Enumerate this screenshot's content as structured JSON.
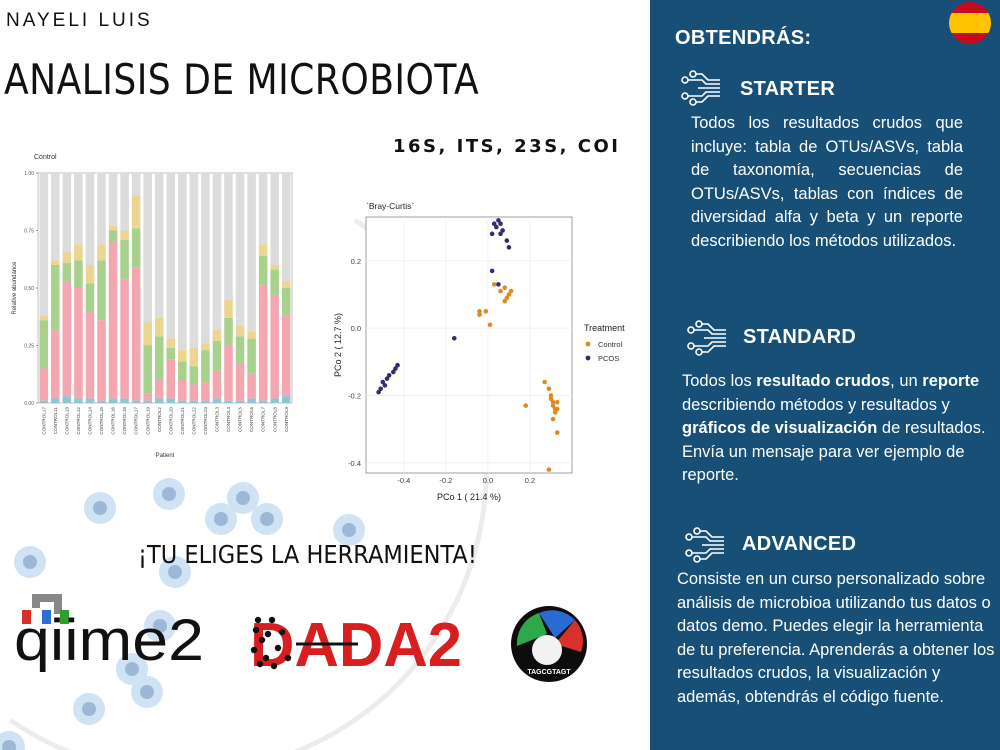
{
  "header": {
    "author": "NAYELI LUIS",
    "title": "ANALISIS DE MICROBIOTA",
    "markers": "16S, ITS, 23S, COI"
  },
  "slogan": "¡TU ELIGES LA HERRAMIENTA!",
  "tools": {
    "qiime_logo_text": "qiime2",
    "dada_logo_text": "DADA2",
    "third_logo_text": "TAGCGTAGT"
  },
  "side_panel": {
    "heading": "OBTENDRÁS:",
    "flag_icon": "spain-flag-icon",
    "accent_color": "#174f77",
    "plans": [
      {
        "name": "STARTER",
        "icon": "circuit-icon",
        "description": "Todos los resultados crudos que incluye: tabla de OTUs/ASVs, tabla de taxonomía, secuencias de OTUs/ASVs, tablas con índices de diversidad alfa y beta y un reporte describiendo los métodos utilizados."
      },
      {
        "name": "STANDARD",
        "icon": "circuit-icon",
        "desc_parts": [
          "Todos los ",
          "resultado crudos",
          ", un ",
          "reporte",
          " describiendo métodos y resultados y ",
          "gráficos de visualización",
          " de resultados. Envía un mensaje para ver ejemplo de reporte."
        ]
      },
      {
        "name": "ADVANCED",
        "icon": "circuit-icon",
        "description": "Consiste en un curso personalizado sobre análisis de microbioa utilizando tus datos o datos demo. Puedes elegir la herramienta de tu preferencia. Aprenderás a obtener los resultados crudos, la visualización y además, obtendrás el código fuente."
      }
    ]
  },
  "chart_data": [
    {
      "type": "bar",
      "subtype": "stacked",
      "title": "Control",
      "xlabel": "Patient",
      "ylabel": "Relative abundance",
      "ylim": [
        0,
        1
      ],
      "yticks": [
        "0.00",
        "0.25",
        "0.50",
        "0.75",
        "1.00"
      ],
      "categories": [
        "CONTROL17",
        "CONTROL11",
        "CONTROL13",
        "CONTROL12",
        "CONTROL14",
        "CONTROL15",
        "CONTROL16",
        "CONTROL18",
        "CONTROL17",
        "CONTROL19",
        "CONTROL2",
        "CONTROL20",
        "CONTROL21",
        "CONTROL22",
        "CONTROL23",
        "CONTROL3",
        "CONTROL4",
        "CONTROL5",
        "CONTROL6",
        "CONTROL7",
        "CONTROL8",
        "CONTROL9"
      ],
      "series": [
        {
          "color": "#8cc8d2",
          "values": [
            0.01,
            0.02,
            0.03,
            0.02,
            0.02,
            0.01,
            0.02,
            0.02,
            0.01,
            0.01,
            0.02,
            0.02,
            0.01,
            0.01,
            0.01,
            0.02,
            0.01,
            0.01,
            0.02,
            0.01,
            0.02,
            0.03
          ]
        },
        {
          "color": "#f4a7b0",
          "values": [
            0.14,
            0.3,
            0.5,
            0.48,
            0.38,
            0.35,
            0.68,
            0.52,
            0.58,
            0.03,
            0.08,
            0.17,
            0.09,
            0.07,
            0.08,
            0.12,
            0.24,
            0.16,
            0.11,
            0.5,
            0.45,
            0.35
          ]
        },
        {
          "color": "#a9d18e",
          "values": [
            0.21,
            0.28,
            0.08,
            0.12,
            0.12,
            0.26,
            0.05,
            0.17,
            0.17,
            0.21,
            0.19,
            0.05,
            0.08,
            0.08,
            0.14,
            0.13,
            0.12,
            0.12,
            0.15,
            0.13,
            0.11,
            0.12
          ]
        },
        {
          "color": "#ecd491",
          "values": [
            0.02,
            0.02,
            0.05,
            0.07,
            0.08,
            0.07,
            0.02,
            0.04,
            0.14,
            0.1,
            0.08,
            0.04,
            0.05,
            0.08,
            0.03,
            0.05,
            0.08,
            0.05,
            0.03,
            0.05,
            0.02,
            0.03
          ]
        },
        {
          "color": "#dcdcdc",
          "values": [
            0.62,
            0.38,
            0.34,
            0.31,
            0.4,
            0.31,
            0.23,
            0.25,
            0.1,
            0.65,
            0.63,
            0.72,
            0.77,
            0.76,
            0.74,
            0.68,
            0.55,
            0.66,
            0.69,
            0.31,
            0.4,
            0.47
          ]
        }
      ]
    },
    {
      "type": "scatter",
      "title": "`Bray-Curtis`",
      "xlabel": "PCo 1 ( 21.4 %)",
      "ylabel": "PCo 2 ( 12.7 %)",
      "xlim": [
        -0.58,
        0.4
      ],
      "ylim": [
        -0.43,
        0.33
      ],
      "xticks": [
        -0.4,
        -0.2,
        0.0,
        0.2
      ],
      "yticks": [
        -0.4,
        -0.2,
        0.0,
        0.2
      ],
      "legend_title": "Treatment",
      "legend_position": "right",
      "series": [
        {
          "name": "Control",
          "color": "#e08a1e",
          "x": [
            0.03,
            0.06,
            0.08,
            0.1,
            0.09,
            0.11,
            0.08,
            -0.04,
            -0.04,
            -0.01,
            0.01,
            0.18,
            0.27,
            0.29,
            0.3,
            0.31,
            0.31,
            0.32,
            0.33,
            0.32,
            0.33,
            0.31,
            0.3,
            0.29,
            0.33
          ],
          "y": [
            0.13,
            0.11,
            0.12,
            0.1,
            0.09,
            0.11,
            0.08,
            0.05,
            0.04,
            0.05,
            0.01,
            -0.23,
            -0.16,
            -0.18,
            -0.21,
            -0.22,
            -0.23,
            -0.24,
            -0.22,
            -0.25,
            -0.31,
            -0.27,
            -0.2,
            -0.42,
            -0.24
          ]
        },
        {
          "name": "PCOS",
          "color": "#3b2a6b",
          "x": [
            0.03,
            0.05,
            0.04,
            0.06,
            0.07,
            0.02,
            0.06,
            0.09,
            0.1,
            0.02,
            0.05,
            -0.16,
            -0.43,
            -0.44,
            -0.45,
            -0.47,
            -0.48,
            -0.5,
            -0.49,
            -0.51,
            -0.52
          ],
          "y": [
            0.31,
            0.32,
            0.3,
            0.31,
            0.29,
            0.28,
            0.28,
            0.26,
            0.24,
            0.17,
            0.13,
            -0.03,
            -0.11,
            -0.12,
            -0.13,
            -0.14,
            -0.15,
            -0.16,
            -0.17,
            -0.18,
            -0.19
          ]
        }
      ]
    }
  ]
}
